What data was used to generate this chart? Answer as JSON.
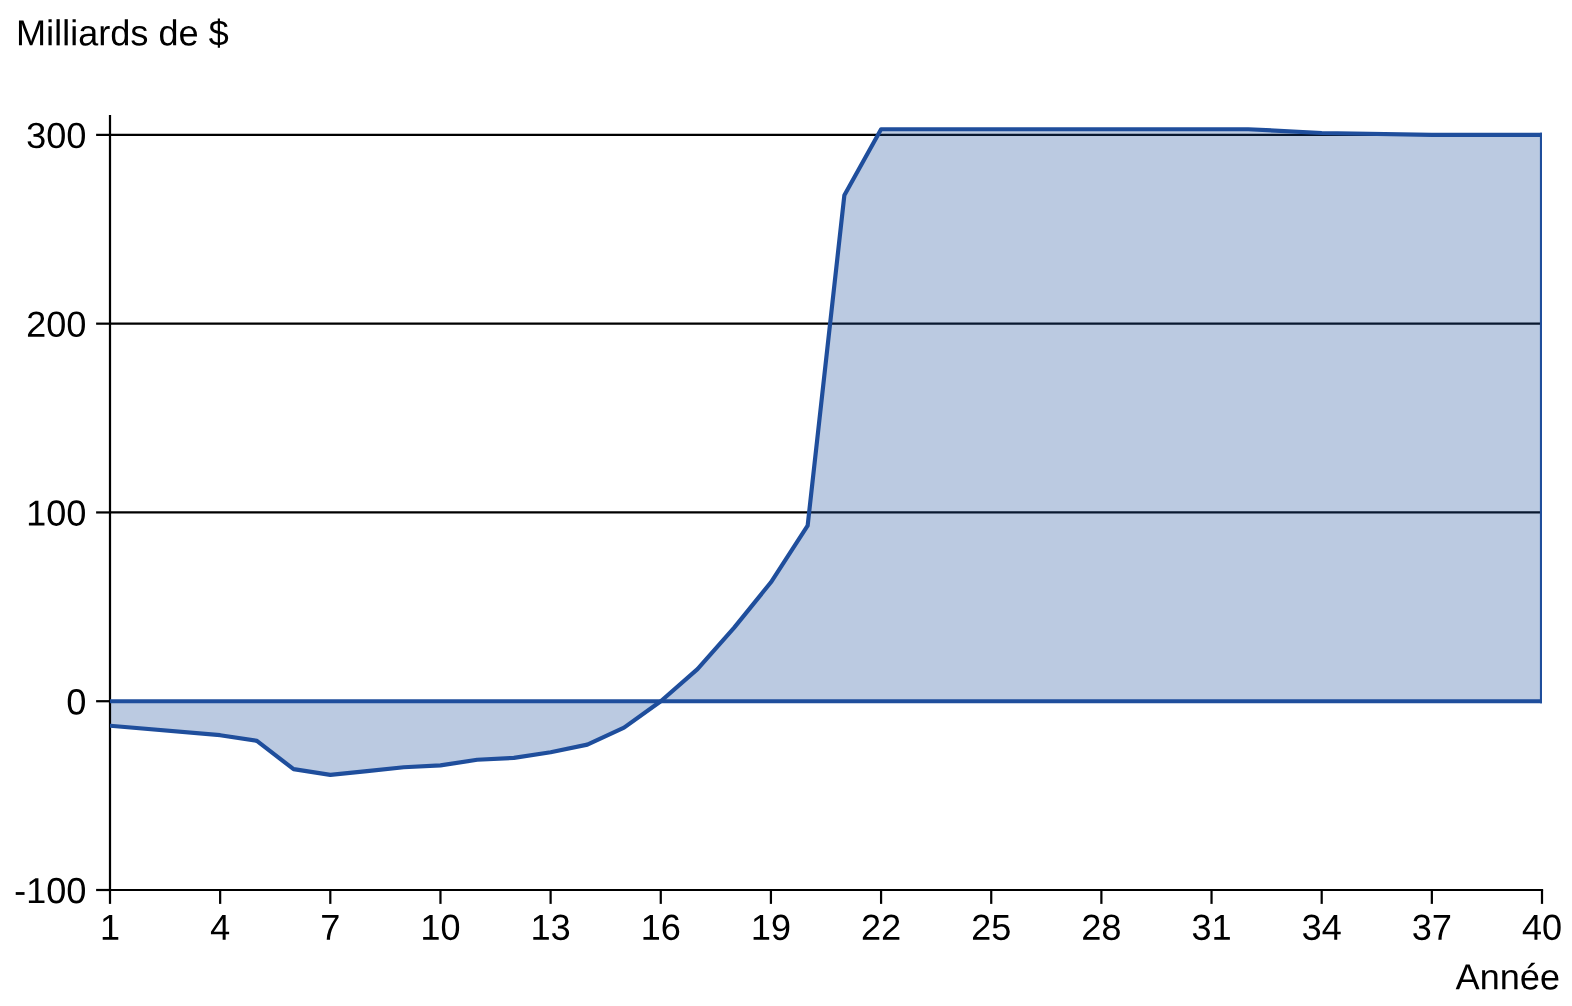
{
  "chart_data": {
    "type": "area",
    "ylabel": "Milliards de $",
    "xlabel": "Année",
    "x": [
      1,
      4,
      5,
      6,
      7,
      8,
      9,
      10,
      11,
      12,
      13,
      14,
      15,
      16,
      17,
      18,
      19,
      20,
      21,
      22,
      25,
      28,
      31,
      32,
      34,
      37,
      40
    ],
    "series": [
      {
        "color": "#1f4e9c",
        "values": [
          -13,
          -18,
          -21,
          -36,
          -39,
          -37,
          -35,
          -34,
          -31,
          -30,
          -27,
          -23,
          -14,
          0,
          17,
          39,
          63,
          93,
          268,
          303,
          303,
          303,
          303,
          303,
          301,
          300,
          300
        ]
      }
    ],
    "xlim": [
      1,
      40
    ],
    "xticks": [
      1,
      4,
      7,
      10,
      13,
      16,
      19,
      22,
      25,
      28,
      31,
      34,
      37,
      40
    ],
    "ylim": [
      -100,
      310
    ],
    "yticks": [
      {
        "value": -100,
        "label": "-100"
      },
      0,
      100,
      200,
      300
    ],
    "grid": "y",
    "legend": false,
    "ref_lines": [
      {
        "axis": "y",
        "value": 0,
        "color": "#1f4e9c"
      }
    ]
  }
}
